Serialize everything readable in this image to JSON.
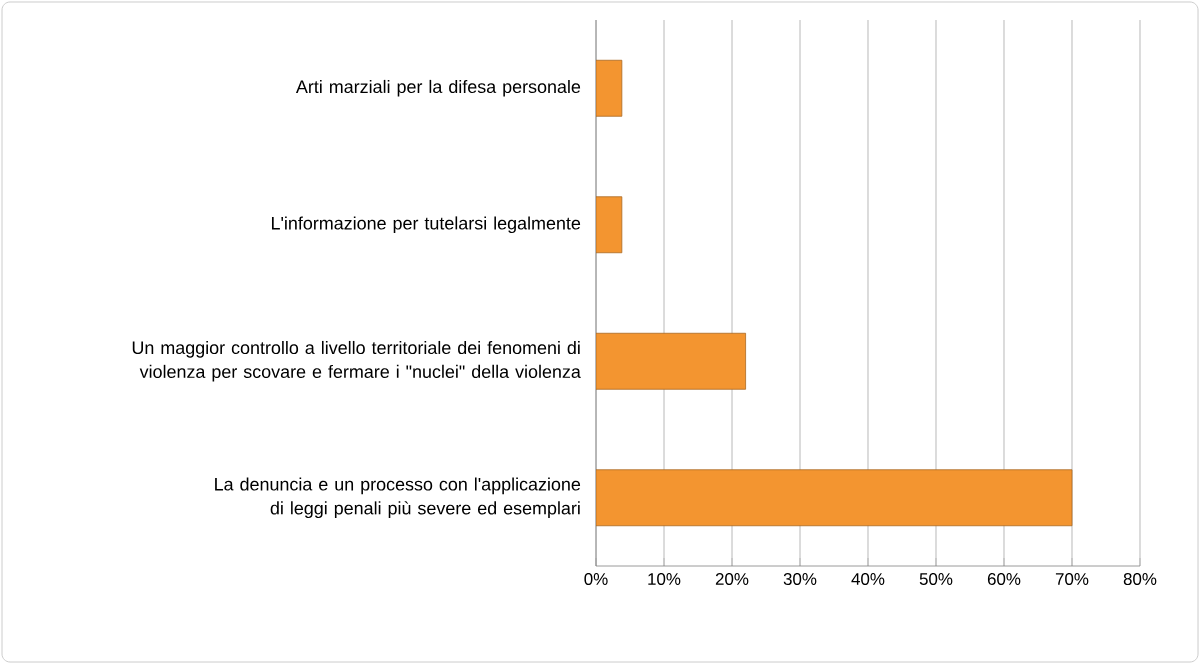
{
  "chart_data": {
    "type": "bar",
    "orientation": "horizontal",
    "categories": [
      "Arti marziali per la difesa personale",
      "L'informazione per tutelarsi legalmente",
      "Un maggior controllo a livello territoriale dei fenomeni di violenza per scovare e fermare i \"nuclei\" della violenza",
      "La denuncia e un processo con l'applicazione di leggi penali più severe ed esemplari"
    ],
    "values": [
      3.8,
      3.8,
      22,
      70
    ],
    "color": "#f39530",
    "xlim": [
      0,
      80
    ],
    "xticks": [
      {
        "value": 0,
        "label": "0%"
      },
      {
        "value": 10,
        "label": "10%"
      },
      {
        "value": 20,
        "label": "20%"
      },
      {
        "value": 30,
        "label": "30%"
      },
      {
        "value": 40,
        "label": "40%"
      },
      {
        "value": 50,
        "label": "50%"
      },
      {
        "value": 60,
        "label": "60%"
      },
      {
        "value": 70,
        "label": "70%"
      },
      {
        "value": 80,
        "label": "80%"
      }
    ],
    "grid": "x"
  }
}
